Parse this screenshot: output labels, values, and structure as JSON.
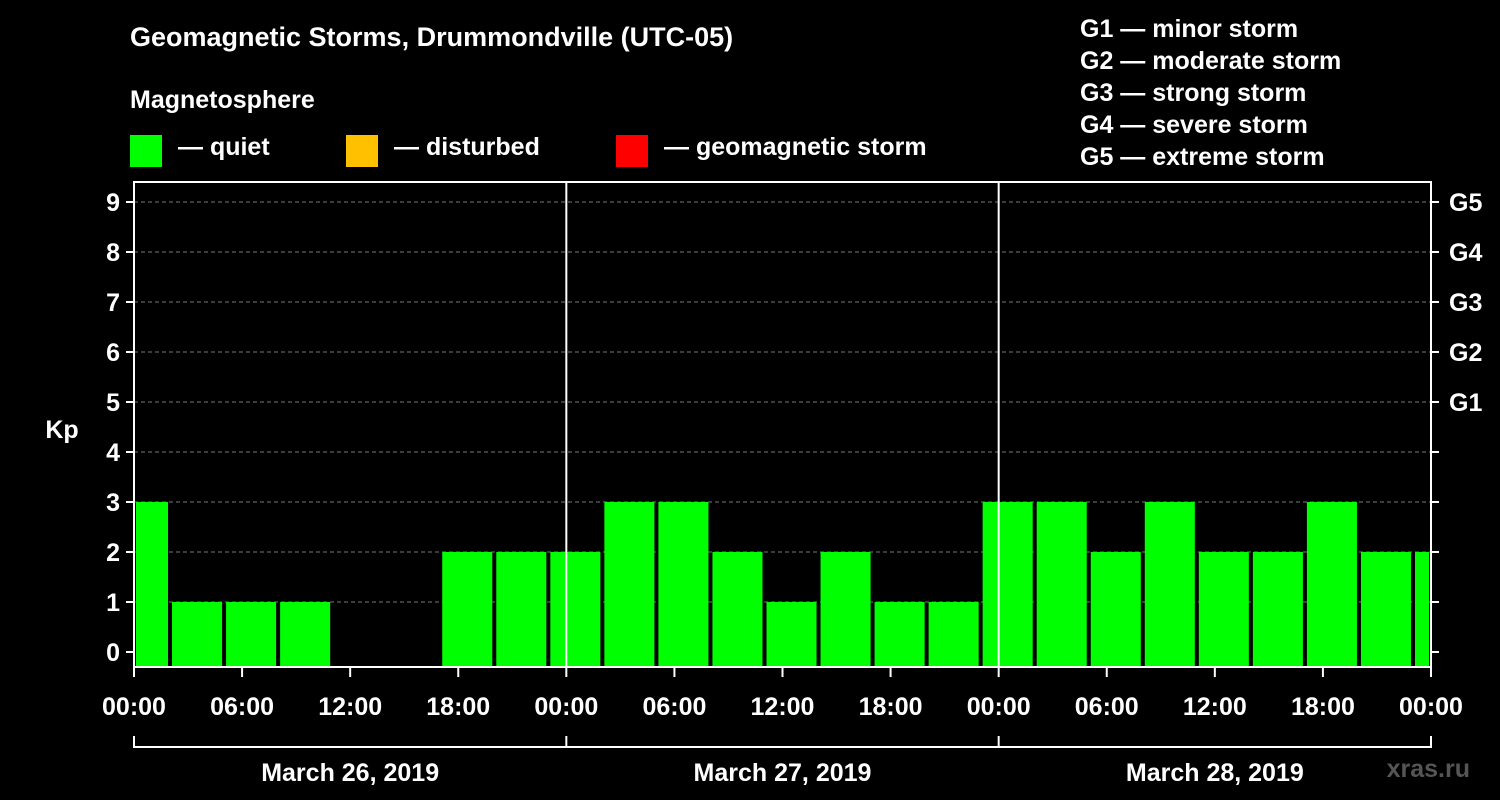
{
  "title": "Geomagnetic Storms, Drummondville (UTC-05)",
  "magnetosphere_label": "Magnetosphere",
  "legend": {
    "quiet": {
      "label": "— quiet",
      "color": "#00ff00"
    },
    "disturbed": {
      "label": "— disturbed",
      "color": "#ffc000"
    },
    "storm": {
      "label": "— geomagnetic storm",
      "color": "#ff0000"
    }
  },
  "storm_scale": [
    "G1 — minor storm",
    "G2 — moderate storm",
    "G3 — strong storm",
    "G4 — severe storm",
    "G5 — extreme storm"
  ],
  "watermark": "xras.ru",
  "chart_data": {
    "type": "bar",
    "title": "Geomagnetic Storms, Drummondville (UTC-05)",
    "ylabel": "Kp",
    "xlabel": "",
    "ylim": [
      0,
      9
    ],
    "y_ticks": [
      "0",
      "1",
      "2",
      "3",
      "4",
      "5",
      "6",
      "7",
      "8",
      "9"
    ],
    "right_axis_labels": [
      {
        "kp": 5,
        "label": "G1"
      },
      {
        "kp": 6,
        "label": "G2"
      },
      {
        "kp": 7,
        "label": "G3"
      },
      {
        "kp": 8,
        "label": "G4"
      },
      {
        "kp": 9,
        "label": "G5"
      }
    ],
    "x_tick_labels": [
      "00:00",
      "06:00",
      "12:00",
      "18:00",
      "00:00",
      "06:00",
      "12:00",
      "18:00",
      "00:00",
      "06:00",
      "12:00",
      "18:00",
      "00:00"
    ],
    "day_labels": [
      "March 26, 2019",
      "March 27, 2019",
      "March 28, 2019"
    ],
    "interval_hours": 3,
    "start_hour_offset": -1,
    "total_hours": 72,
    "values": [
      3,
      1,
      1,
      1,
      0,
      0,
      2,
      2,
      2,
      3,
      3,
      2,
      1,
      2,
      1,
      1,
      3,
      3,
      2,
      3,
      2,
      2,
      3,
      2,
      2
    ],
    "grid": true,
    "series_color": "#00ff00"
  }
}
